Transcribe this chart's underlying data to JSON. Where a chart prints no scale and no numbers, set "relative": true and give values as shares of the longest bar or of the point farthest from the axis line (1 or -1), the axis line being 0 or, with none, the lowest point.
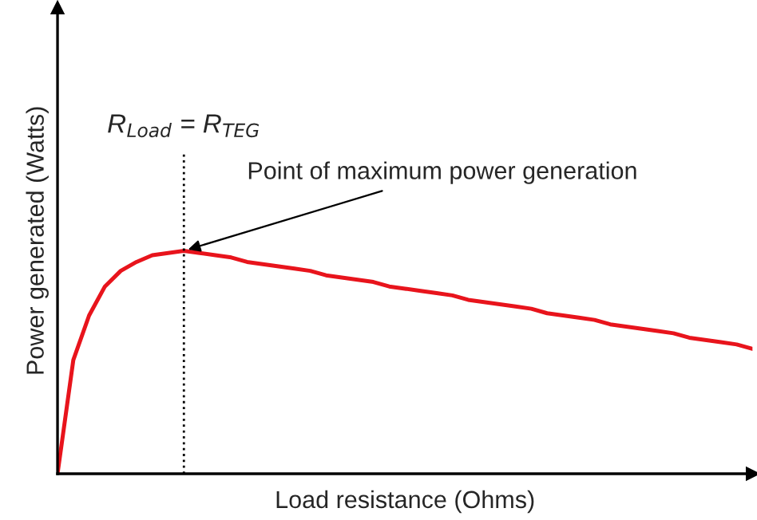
{
  "chart_data": {
    "type": "line",
    "relative": true,
    "xlabel": "Load resistance (Ohms)",
    "ylabel": "Power generated (Watts)",
    "categories": [
      null,
      null,
      null,
      null,
      null,
      null,
      null,
      null,
      null,
      null,
      null,
      null,
      null,
      null,
      null,
      null,
      null,
      null,
      null,
      null,
      null,
      null,
      null,
      null,
      null,
      null,
      null,
      null,
      null,
      null,
      null,
      null,
      null,
      null,
      null,
      null,
      null,
      null,
      null,
      null,
      null,
      null,
      null,
      null,
      null
    ],
    "series": [
      {
        "color": "#e8141c",
        "values": [
          0,
          0.51,
          0.71,
          0.84,
          0.91,
          0.95,
          0.98,
          0.99,
          1.0,
          0.99,
          0.98,
          0.97,
          0.95,
          0.94,
          0.93,
          0.92,
          0.91,
          0.89,
          0.88,
          0.87,
          0.86,
          0.84,
          0.83,
          0.82,
          0.81,
          0.8,
          0.78,
          0.77,
          0.76,
          0.75,
          0.74,
          0.72,
          0.71,
          0.7,
          0.69,
          0.67,
          0.66,
          0.65,
          0.64,
          0.63,
          0.61,
          0.6,
          0.59,
          0.58,
          0.56
        ]
      }
    ],
    "annotations": [
      "R$_{Load}$ = R$_{TEG}$",
      "Point of maximum power generation"
    ],
    "marker": "none",
    "line_style": "solid",
    "grid": false,
    "legend": false
  }
}
